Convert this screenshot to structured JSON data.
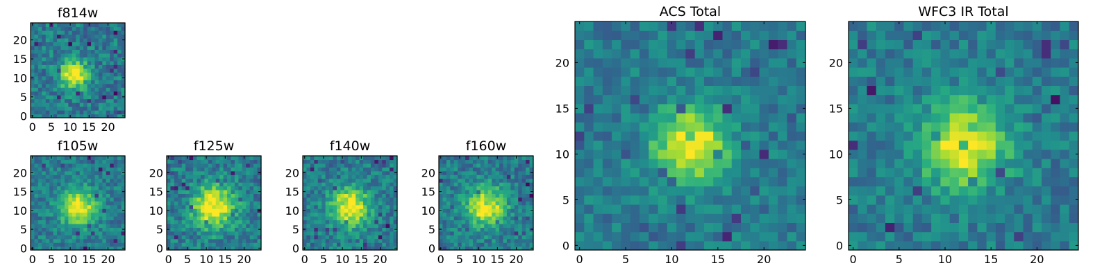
{
  "chart_data": {
    "type": "heatmap",
    "colormap": "viridis",
    "colors": {
      "low": "#440154",
      "mid": "#21908d",
      "high": "#fde725"
    },
    "panels": [
      {
        "id": "f814w",
        "title": "f814w",
        "grid_size": 25,
        "peak": [
          11,
          11
        ],
        "spread": 2.6,
        "noise": 0.16,
        "xticks": [
          "0",
          "5",
          "10",
          "15",
          "20"
        ],
        "yticks": [
          "0",
          "5",
          "10",
          "15",
          "20"
        ]
      },
      {
        "id": "f105w",
        "title": "f105w",
        "grid_size": 25,
        "peak": [
          12,
          11
        ],
        "spread": 3.4,
        "noise": 0.14,
        "xticks": [
          "0",
          "5",
          "10",
          "15",
          "20"
        ],
        "yticks": [
          "0",
          "5",
          "10",
          "15",
          "20"
        ]
      },
      {
        "id": "f125w",
        "title": "f125w",
        "grid_size": 25,
        "peak": [
          12,
          11
        ],
        "spread": 4.0,
        "noise": 0.16,
        "xticks": [
          "0",
          "5",
          "10",
          "15",
          "20"
        ],
        "yticks": [
          "0",
          "5",
          "10",
          "15",
          "20"
        ]
      },
      {
        "id": "f140w",
        "title": "f140w",
        "grid_size": 25,
        "peak": [
          12,
          11
        ],
        "spread": 3.6,
        "noise": 0.15,
        "xticks": [
          "0",
          "5",
          "10",
          "15",
          "20"
        ],
        "yticks": [
          "0",
          "5",
          "10",
          "15",
          "20"
        ]
      },
      {
        "id": "f160w",
        "title": "f160w",
        "grid_size": 25,
        "peak": [
          12,
          11
        ],
        "spread": 3.6,
        "noise": 0.15,
        "xticks": [
          "0",
          "5",
          "10",
          "15",
          "20"
        ],
        "yticks": [
          "0",
          "5",
          "10",
          "15",
          "20"
        ]
      },
      {
        "id": "acs-total",
        "title": "ACS Total",
        "grid_size": 25,
        "peak": [
          12,
          11
        ],
        "spread": 2.8,
        "noise": 0.12,
        "xticks": [
          "0",
          "5",
          "10",
          "15",
          "20"
        ],
        "yticks": [
          "0",
          "5",
          "10",
          "15",
          "20"
        ]
      },
      {
        "id": "wfc3-ir-total",
        "title": "WFC3 IR Total",
        "grid_size": 25,
        "peak": [
          12,
          11
        ],
        "spread": 3.2,
        "noise": 0.13,
        "xticks": [
          "0",
          "5",
          "10",
          "15",
          "20"
        ],
        "yticks": [
          "0",
          "5",
          "10",
          "15",
          "20"
        ]
      }
    ]
  }
}
